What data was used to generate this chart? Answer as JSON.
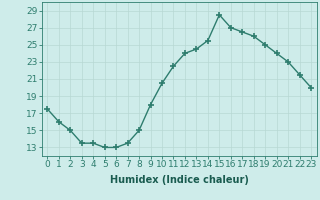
{
  "x": [
    0,
    1,
    2,
    3,
    4,
    5,
    6,
    7,
    8,
    9,
    10,
    11,
    12,
    13,
    14,
    15,
    16,
    17,
    18,
    19,
    20,
    21,
    22,
    23
  ],
  "y": [
    17.5,
    16.0,
    15.0,
    13.5,
    13.5,
    13.0,
    13.0,
    13.5,
    15.0,
    18.0,
    20.5,
    22.5,
    24.0,
    24.5,
    25.5,
    28.5,
    27.0,
    26.5,
    26.0,
    25.0,
    24.0,
    23.0,
    21.5,
    20.0
  ],
  "line_color": "#2e7d6e",
  "marker": "+",
  "marker_size": 4,
  "marker_lw": 1.2,
  "bg_color": "#ceecea",
  "grid_color": "#b8d8d4",
  "axis_color": "#2e7d6e",
  "tick_color": "#2e7d6e",
  "xlabel": "Humidex (Indice chaleur)",
  "xlim": [
    -0.5,
    23.5
  ],
  "ylim": [
    12,
    30
  ],
  "yticks": [
    13,
    15,
    17,
    19,
    21,
    23,
    25,
    27,
    29
  ],
  "xticks": [
    0,
    1,
    2,
    3,
    4,
    5,
    6,
    7,
    8,
    9,
    10,
    11,
    12,
    13,
    14,
    15,
    16,
    17,
    18,
    19,
    20,
    21,
    22,
    23
  ],
  "xlabel_fontsize": 7.0,
  "tick_fontsize": 6.5,
  "label_color": "#1a5c50",
  "linewidth": 1.0
}
